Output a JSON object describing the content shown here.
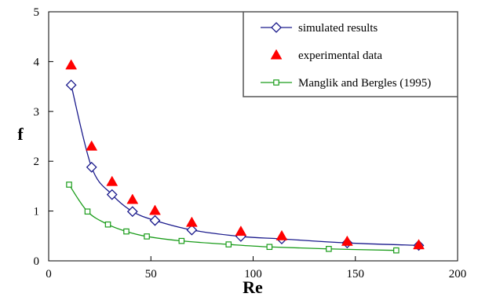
{
  "chart_data": {
    "type": "scatter",
    "title": "",
    "xlabel": "Re",
    "ylabel": "f",
    "xlim": [
      0,
      200
    ],
    "ylim": [
      0,
      5
    ],
    "xticks": [
      "0",
      "50",
      "100",
      "150",
      "200"
    ],
    "yticks": [
      "0",
      "1",
      "2",
      "3",
      "4",
      "5"
    ],
    "grid": false,
    "legend_position": "top-right",
    "series": [
      {
        "name": "simulated results",
        "marker": "diamond-open",
        "line": true,
        "color": "#1a1a8c",
        "x": [
          11,
          21,
          31,
          41,
          52,
          70,
          94,
          114,
          146,
          181
        ],
        "y": [
          3.53,
          1.88,
          1.33,
          0.99,
          0.81,
          0.62,
          0.49,
          0.44,
          0.36,
          0.31
        ]
      },
      {
        "name": "experimental data",
        "marker": "triangle-filled",
        "line": false,
        "color": "#ff0000",
        "x": [
          11,
          21,
          31,
          41,
          52,
          70,
          94,
          114,
          146,
          181
        ],
        "y": [
          3.93,
          2.3,
          1.59,
          1.23,
          1.01,
          0.77,
          0.59,
          0.5,
          0.39,
          0.32
        ]
      },
      {
        "name": "Manglik and Bergles (1995)",
        "marker": "square-open",
        "line": true,
        "color": "#1a9c1a",
        "x": [
          10,
          19,
          29,
          38,
          48,
          65,
          88,
          108,
          137,
          170
        ],
        "y": [
          1.53,
          0.99,
          0.73,
          0.59,
          0.49,
          0.4,
          0.33,
          0.28,
          0.24,
          0.21
        ]
      }
    ]
  }
}
